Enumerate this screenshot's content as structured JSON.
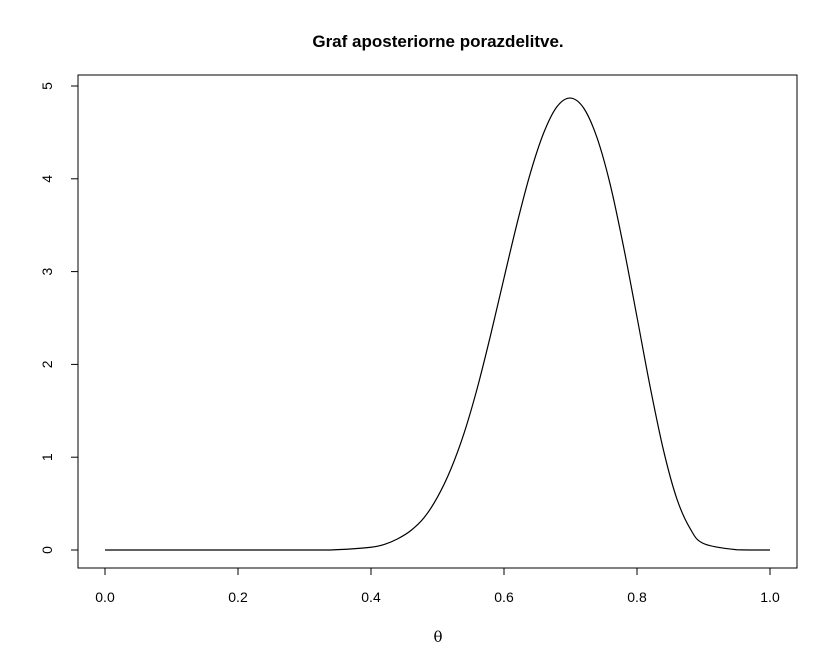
{
  "chart_data": {
    "type": "line",
    "title": "Graf aposteriorne porazdelitve.",
    "xlabel": "θ",
    "ylabel": "",
    "xlim": [
      0,
      1
    ],
    "ylim": [
      0,
      5
    ],
    "xticks": [
      0.0,
      0.2,
      0.4,
      0.6,
      0.8,
      1.0
    ],
    "xtick_labels": [
      "0.0",
      "0.2",
      "0.4",
      "0.6",
      "0.8",
      "1.0"
    ],
    "yticks": [
      0,
      1,
      2,
      3,
      4,
      5
    ],
    "ytick_labels": [
      "0",
      "1",
      "2",
      "3",
      "4",
      "5"
    ],
    "grid": false,
    "legend": "none",
    "line_color": "#000000",
    "series": [
      {
        "x": [
          0.0,
          0.3,
          0.35,
          0.4,
          0.42,
          0.44,
          0.46,
          0.48,
          0.5,
          0.52,
          0.54,
          0.56,
          0.58,
          0.6,
          0.62,
          0.64,
          0.66,
          0.68,
          0.7,
          0.72,
          0.74,
          0.76,
          0.78,
          0.8,
          0.82,
          0.84,
          0.86,
          0.88,
          0.9,
          0.95,
          1.0
        ],
        "y": [
          0.0,
          0.0,
          0.004,
          0.03,
          0.06,
          0.12,
          0.21,
          0.35,
          0.57,
          0.87,
          1.26,
          1.75,
          2.32,
          2.93,
          3.53,
          4.07,
          4.5,
          4.78,
          4.87,
          4.76,
          4.44,
          3.93,
          3.26,
          2.51,
          1.75,
          1.07,
          0.55,
          0.23,
          0.07,
          0.003,
          0.0
        ]
      }
    ]
  }
}
